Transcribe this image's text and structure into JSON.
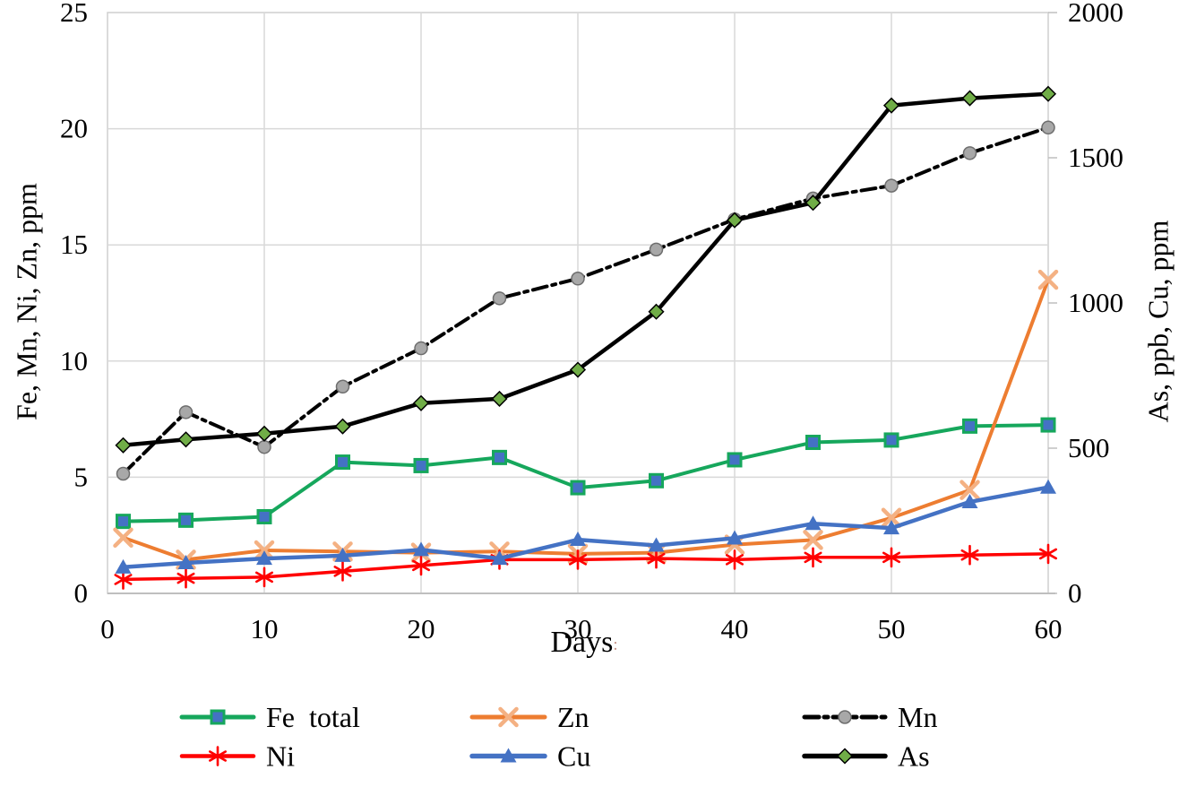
{
  "chart_data": {
    "type": "line",
    "x": {
      "label": "Days",
      "label_suffix": ":",
      "min": 0,
      "max": 60,
      "ticks": [
        0,
        10,
        20,
        30,
        40,
        50,
        60
      ]
    },
    "left_axis": {
      "label": "Fe, Mn, Ni, Zn,  ppm",
      "min": 0,
      "max": 25,
      "ticks": [
        0,
        5,
        10,
        15,
        20,
        25
      ]
    },
    "right_axis": {
      "label": "As, ppb,  Cu,  ppm",
      "min": 0,
      "max": 2000,
      "ticks": [
        0,
        500,
        1000,
        1500,
        2000
      ]
    },
    "days": [
      1,
      5,
      10,
      15,
      20,
      25,
      30,
      35,
      40,
      45,
      50,
      55,
      60
    ],
    "series": [
      {
        "name": "Fe  total",
        "axis": "left",
        "color": "#16A75C",
        "line_width": 4,
        "dash": null,
        "marker": "square",
        "marker_fill": "#4472C4",
        "marker_stroke": "#16A75C",
        "values": [
          3.1,
          3.15,
          3.3,
          5.65,
          5.5,
          5.85,
          4.55,
          4.85,
          5.75,
          6.5,
          6.6,
          7.2,
          7.25
        ]
      },
      {
        "name": "Zn",
        "axis": "left",
        "color": "#ED7D31",
        "line_width": 4,
        "dash": null,
        "marker": "x",
        "marker_fill": "#F4B183",
        "marker_stroke": "#F4B183",
        "values": [
          2.4,
          1.45,
          1.85,
          1.8,
          1.75,
          1.8,
          1.7,
          1.75,
          2.1,
          2.3,
          3.25,
          4.45,
          13.5
        ]
      },
      {
        "name": "Mn",
        "axis": "left",
        "color": "#000000",
        "line_width": 4,
        "dash": "16 6 4 6",
        "marker": "circle",
        "marker_fill": "#A8A8A8",
        "marker_stroke": "#6E6E6E",
        "values": [
          5.15,
          7.8,
          6.3,
          8.9,
          10.55,
          12.7,
          13.55,
          14.8,
          16.1,
          17.0,
          17.55,
          18.95,
          20.05
        ]
      },
      {
        "name": "Ni",
        "axis": "left",
        "color": "#FF0000",
        "line_width": 3.5,
        "dash": null,
        "marker": "asterisk",
        "marker_fill": "#FF0000",
        "marker_stroke": "#FF0000",
        "values": [
          0.6,
          0.65,
          0.7,
          0.95,
          1.2,
          1.45,
          1.45,
          1.5,
          1.45,
          1.55,
          1.55,
          1.65,
          1.7
        ]
      },
      {
        "name": "Cu",
        "axis": "right",
        "color": "#4472C4",
        "line_width": 4.5,
        "dash": null,
        "marker": "triangle",
        "marker_fill": "#4472C4",
        "marker_stroke": "#4472C4",
        "values": [
          90,
          105,
          120,
          130,
          150,
          120,
          185,
          165,
          190,
          240,
          225,
          315,
          365
        ]
      },
      {
        "name": "As",
        "axis": "right",
        "color": "#000000",
        "line_width": 4.5,
        "dash": null,
        "marker": "diamond",
        "marker_fill": "#70AD47",
        "marker_stroke": "#000000",
        "values": [
          510,
          530,
          550,
          575,
          655,
          670,
          770,
          970,
          1285,
          1345,
          1680,
          1705,
          1720
        ]
      }
    ],
    "legend": {
      "rows": [
        [
          0,
          1,
          2
        ],
        [
          3,
          4,
          5
        ]
      ]
    },
    "style": {
      "grid_color": "#D9D9D9",
      "border_color": "#CFCFCF",
      "axis_line_color": "#BFBFBF",
      "tick_label_color": "#000000",
      "background": "#FFFFFF"
    }
  }
}
